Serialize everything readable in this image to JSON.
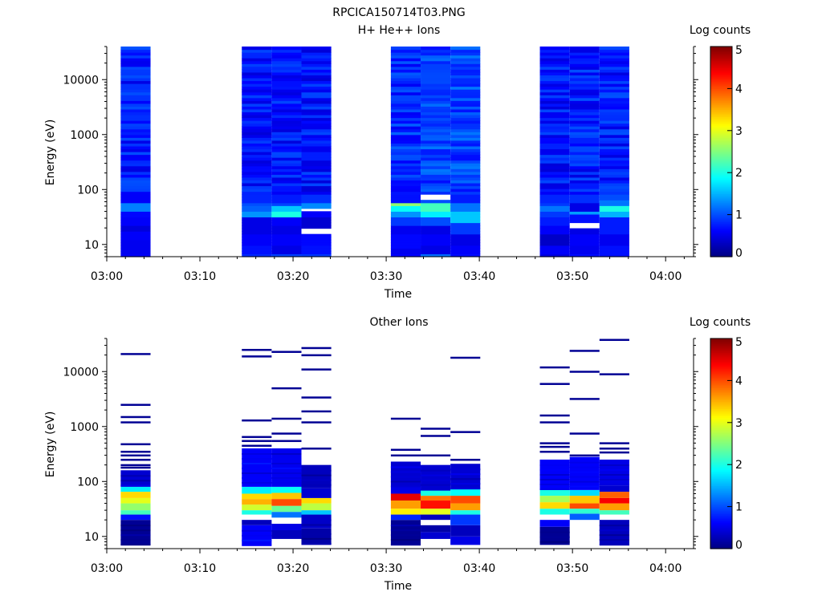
{
  "figure_title": "RPCICA150714T03.PNG",
  "colors": {
    "axis": "#000000",
    "background": "#ffffff"
  },
  "chart_data": [
    {
      "type": "heatmap",
      "title": "H+ He++ Ions",
      "xlabel": "Time",
      "ylabel": "Energy (eV)",
      "xlim": [
        "03:00",
        "04:03"
      ],
      "ylog": true,
      "ylim": [
        6,
        40000
      ],
      "x_ticks": [
        "03:00",
        "03:10",
        "03:20",
        "03:30",
        "03:40",
        "03:50",
        "04:00"
      ],
      "y_ticks": [
        "10",
        "100",
        "1000",
        "10000"
      ],
      "colorbar": {
        "label": "Log counts",
        "min": 0,
        "max": 5,
        "ticks": [
          "0",
          "1",
          "2",
          "3",
          "4",
          "5"
        ],
        "colormap": "jet"
      },
      "columns": [
        {
          "start": "03:01.5",
          "end": "03:04.7",
          "base": 0.75,
          "low_profile": [
            [
              7,
              9,
              0.55
            ],
            [
              9,
              13,
              0.55
            ],
            [
              13,
              17,
              0.6
            ],
            [
              17,
              22,
              0.45
            ],
            [
              22,
              30,
              0.6
            ],
            [
              30,
              40,
              0.65
            ],
            [
              40,
              60,
              1.25
            ],
            [
              60,
              95,
              0.6
            ]
          ]
        },
        {
          "start": "03:14.5",
          "end": "03:17.7",
          "base": 0.7,
          "low_profile": [
            [
              7,
              10,
              0.7
            ],
            [
              10,
              15,
              0.6
            ],
            [
              15,
              22,
              0.5
            ],
            [
              22,
              30,
              0.5
            ],
            [
              30,
              40,
              1.35
            ],
            [
              40,
              50,
              1.1
            ],
            [
              50,
              60,
              1.0
            ],
            [
              60,
              80,
              0.8
            ]
          ]
        },
        {
          "start": "03:17.7",
          "end": "03:20.9",
          "base": 0.7,
          "low_profile": [
            [
              7,
              10,
              0.5
            ],
            [
              10,
              15,
              0.6
            ],
            [
              15,
              22,
              0.5
            ],
            [
              22,
              30,
              0.6
            ],
            [
              30,
              40,
              2.0
            ],
            [
              40,
              50,
              1.6
            ],
            [
              50,
              60,
              0.95
            ],
            [
              60,
              80,
              0.75
            ]
          ]
        },
        {
          "start": "03:20.9",
          "end": "03:24.1",
          "base": 0.7,
          "low_profile": [
            [
              7,
              10,
              0.7
            ],
            [
              10,
              15,
              0.65
            ],
            [
              15,
              20,
              -1
            ],
            [
              20,
              30,
              0.4
            ],
            [
              30,
              40,
              0.6
            ],
            [
              40,
              44,
              -1
            ],
            [
              44,
              55,
              1.3
            ],
            [
              55,
              80,
              0.85
            ]
          ]
        },
        {
          "start": "03:30.5",
          "end": "03:33.7",
          "base": 0.85,
          "low_profile": [
            [
              7,
              9,
              0.55
            ],
            [
              9,
              15,
              0.65
            ],
            [
              15,
              22,
              0.55
            ],
            [
              22,
              30,
              0.9
            ],
            [
              30,
              40,
              1.35
            ],
            [
              40,
              50,
              1.9
            ],
            [
              50,
              60,
              2.6
            ],
            [
              60,
              80,
              0.7
            ]
          ]
        },
        {
          "start": "03:33.7",
          "end": "03:36.9",
          "base": 0.95,
          "low_profile": [
            [
              7,
              10,
              0.5
            ],
            [
              10,
              15,
              0.6
            ],
            [
              15,
              22,
              0.5
            ],
            [
              22,
              30,
              1.0
            ],
            [
              30,
              40,
              1.8
            ],
            [
              40,
              55,
              2.2
            ],
            [
              55,
              65,
              1.0
            ],
            [
              65,
              80,
              -1
            ]
          ]
        },
        {
          "start": "03:36.9",
          "end": "03:40.1",
          "base": 0.95,
          "low_profile": [
            [
              7,
              10,
              0.6
            ],
            [
              10,
              15,
              0.5
            ],
            [
              15,
              25,
              0.9
            ],
            [
              25,
              40,
              1.6
            ],
            [
              40,
              60,
              1.2
            ],
            [
              60,
              80,
              0.75
            ]
          ]
        },
        {
          "start": "03:46.5",
          "end": "03:49.7",
          "base": 0.7,
          "low_profile": [
            [
              7,
              10,
              0.6
            ],
            [
              10,
              15,
              0.35
            ],
            [
              15,
              22,
              0.6
            ],
            [
              22,
              30,
              0.75
            ],
            [
              30,
              40,
              0.9
            ],
            [
              40,
              50,
              1.2
            ],
            [
              50,
              60,
              0.9
            ],
            [
              60,
              80,
              0.8
            ]
          ]
        },
        {
          "start": "03:49.7",
          "end": "03:52.9",
          "base": 0.75,
          "low_profile": [
            [
              7,
              10,
              0.55
            ],
            [
              10,
              15,
              0.6
            ],
            [
              15,
              20,
              0.5
            ],
            [
              20,
              25,
              -1
            ],
            [
              25,
              35,
              0.7
            ],
            [
              35,
              42,
              1.4
            ],
            [
              42,
              55,
              0.5
            ],
            [
              55,
              80,
              0.85
            ]
          ]
        },
        {
          "start": "03:52.9",
          "end": "03:56.1",
          "base": 0.75,
          "low_profile": [
            [
              7,
              10,
              0.7
            ],
            [
              10,
              15,
              0.55
            ],
            [
              15,
              30,
              0.75
            ],
            [
              30,
              40,
              1.5
            ],
            [
              40,
              50,
              2.0
            ],
            [
              50,
              65,
              1.2
            ],
            [
              65,
              80,
              1.0
            ]
          ]
        }
      ]
    },
    {
      "type": "heatmap",
      "title": "Other Ions",
      "xlabel": "Time",
      "ylabel": "Energy (eV)",
      "xlim": [
        "03:00",
        "04:03"
      ],
      "ylog": true,
      "ylim": [
        6,
        40000
      ],
      "x_ticks": [
        "03:00",
        "03:10",
        "03:20",
        "03:30",
        "03:40",
        "03:50",
        "04:00"
      ],
      "y_ticks": [
        "10",
        "100",
        "1000",
        "10000"
      ],
      "colorbar": {
        "label": "Log counts",
        "min": 0,
        "max": 5,
        "ticks": [
          "0",
          "1",
          "2",
          "3",
          "4",
          "5"
        ],
        "colormap": "jet"
      },
      "columns": [
        {
          "start": "03:01.5",
          "end": "03:04.7",
          "bins": [
            [
              7,
              20,
              0.1
            ],
            [
              20,
              25,
              0.7
            ],
            [
              25,
              30,
              2.2
            ],
            [
              30,
              40,
              2.6
            ],
            [
              40,
              50,
              3.0
            ],
            [
              50,
              65,
              3.3
            ],
            [
              65,
              80,
              1.8
            ],
            [
              80,
              160,
              0.4
            ]
          ],
          "lines": [
            21000,
            2500,
            1500,
            1200,
            480,
            350,
            300,
            250,
            200,
            180
          ]
        },
        {
          "start": "03:14.5",
          "end": "03:17.7",
          "bins": [
            [
              7,
              16,
              0.6
            ],
            [
              16,
              20,
              0.3
            ],
            [
              20,
              25,
              -1
            ],
            [
              25,
              30,
              2.0
            ],
            [
              30,
              38,
              2.9
            ],
            [
              38,
              48,
              3.5
            ],
            [
              48,
              60,
              3.3
            ],
            [
              60,
              80,
              1.8
            ],
            [
              80,
              400,
              0.6
            ]
          ],
          "lines": [
            25000,
            19000,
            1300,
            650,
            550,
            450
          ]
        },
        {
          "start": "03:17.7",
          "end": "03:20.9",
          "bins": [
            [
              7,
              9,
              -1
            ],
            [
              9,
              13,
              0.3
            ],
            [
              13,
              17,
              0.5
            ],
            [
              17,
              22,
              -1
            ],
            [
              22,
              28,
              1.2
            ],
            [
              28,
              36,
              2.4
            ],
            [
              36,
              48,
              4.0
            ],
            [
              48,
              62,
              3.4
            ],
            [
              62,
              80,
              1.9
            ],
            [
              80,
              400,
              0.55
            ]
          ],
          "lines": [
            23000,
            5000,
            1400,
            750,
            550
          ]
        },
        {
          "start": "03:20.9",
          "end": "03:24.1",
          "bins": [
            [
              7,
              14,
              0.2
            ],
            [
              14,
              25,
              0.35
            ],
            [
              25,
              30,
              1.6
            ],
            [
              30,
              40,
              2.8
            ],
            [
              40,
              50,
              3.3
            ],
            [
              50,
              75,
              0.4
            ],
            [
              75,
              200,
              0.3
            ]
          ],
          "lines": [
            27000,
            20000,
            11000,
            3400,
            1900,
            1200,
            400
          ]
        },
        {
          "start": "03:30.5",
          "end": "03:33.7",
          "bins": [
            [
              7,
              20,
              0.1
            ],
            [
              20,
              25,
              0.8
            ],
            [
              25,
              32,
              3.2
            ],
            [
              32,
              45,
              3.6
            ],
            [
              45,
              60,
              4.5
            ],
            [
              60,
              80,
              0.5
            ],
            [
              80,
              230,
              0.4
            ]
          ],
          "lines": [
            1400,
            380,
            300
          ]
        },
        {
          "start": "03:33.7",
          "end": "03:36.9",
          "bins": [
            [
              7,
              9,
              -1
            ],
            [
              9,
              12,
              0.4
            ],
            [
              12,
              16,
              0.2
            ],
            [
              16,
              20,
              -1
            ],
            [
              20,
              25,
              0.3
            ],
            [
              25,
              32,
              3.0
            ],
            [
              32,
              45,
              4.3
            ],
            [
              45,
              55,
              3.8
            ],
            [
              55,
              70,
              2.0
            ],
            [
              70,
              200,
              0.4
            ]
          ],
          "lines": [
            920,
            680,
            300
          ]
        },
        {
          "start": "03:36.9",
          "end": "03:40.1",
          "bins": [
            [
              7,
              10,
              0.5
            ],
            [
              10,
              16,
              0.3
            ],
            [
              16,
              25,
              0.9
            ],
            [
              25,
              30,
              2.0
            ],
            [
              30,
              40,
              3.6
            ],
            [
              40,
              55,
              4.0
            ],
            [
              55,
              75,
              1.9
            ],
            [
              75,
              210,
              0.4
            ]
          ],
          "lines": [
            18000,
            800,
            250
          ]
        },
        {
          "start": "03:46.5",
          "end": "03:49.7",
          "bins": [
            [
              7,
              15,
              0.1
            ],
            [
              15,
              20,
              0.6
            ],
            [
              20,
              25,
              -1
            ],
            [
              25,
              32,
              2.0
            ],
            [
              32,
              42,
              3.3
            ],
            [
              42,
              55,
              2.7
            ],
            [
              55,
              70,
              2.0
            ],
            [
              70,
              250,
              0.6
            ]
          ],
          "lines": [
            12000,
            6000,
            1600,
            1200,
            500,
            430,
            350
          ]
        },
        {
          "start": "03:49.7",
          "end": "03:52.9",
          "bins": [
            [
              7,
              10,
              -1
            ],
            [
              10,
              20,
              -1
            ],
            [
              20,
              26,
              1.1
            ],
            [
              26,
              32,
              2.1
            ],
            [
              32,
              40,
              4.0
            ],
            [
              40,
              55,
              3.4
            ],
            [
              55,
              70,
              1.7
            ],
            [
              70,
              280,
              0.6
            ]
          ],
          "lines": [
            24000,
            10000,
            3200,
            750,
            300
          ]
        },
        {
          "start": "03:52.9",
          "end": "03:56.1",
          "bins": [
            [
              7,
              20,
              0.3
            ],
            [
              20,
              25,
              -1
            ],
            [
              25,
              30,
              2.2
            ],
            [
              30,
              40,
              3.6
            ],
            [
              40,
              50,
              4.4
            ],
            [
              50,
              65,
              3.9
            ],
            [
              65,
              85,
              0.4
            ],
            [
              85,
              250,
              0.5
            ]
          ],
          "lines": [
            38000,
            9000,
            500,
            400,
            340
          ]
        }
      ]
    }
  ]
}
